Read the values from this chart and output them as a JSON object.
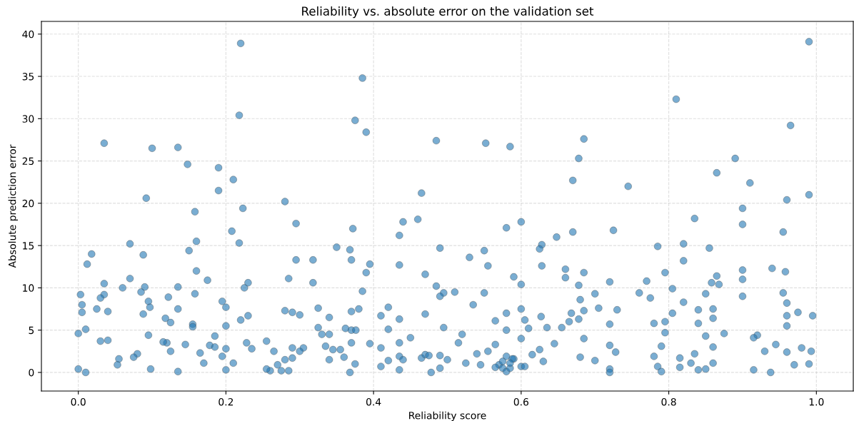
{
  "chart_data": {
    "type": "scatter",
    "title": "Reliability vs. absolute error on the validation set",
    "xlabel": "Reliability score",
    "ylabel": "Absolute prediction error",
    "xlim": [
      -0.05,
      1.05
    ],
    "ylim": [
      -2.2,
      41.5
    ],
    "xticks": [
      {
        "value": 0,
        "label": "0.0"
      },
      {
        "value": 0.2,
        "label": "0.2"
      },
      {
        "value": 0.4,
        "label": "0.4"
      },
      {
        "value": 0.6,
        "label": "0.6"
      },
      {
        "value": 0.8,
        "label": "0.8"
      },
      {
        "value": 1,
        "label": "1.0"
      }
    ],
    "yticks": [
      0,
      5,
      10,
      15,
      20,
      25,
      30,
      35,
      40
    ],
    "grid": true,
    "marker": "circle",
    "series": [
      {
        "color": "#1f77b4",
        "x": [
          0.22,
          0.99,
          0.385,
          0.81,
          0.218,
          0.375,
          0.39,
          0.965,
          0.035,
          0.135,
          0.1,
          0.485,
          0.552,
          0.585,
          0.685,
          0.678,
          0.89,
          0.148,
          0.19,
          0.865,
          0.21,
          0.67,
          0.91,
          0.745,
          0.19,
          0.465,
          0.99,
          0.092,
          0.96,
          0.28,
          0.9,
          0.223,
          0.158,
          0.835,
          0.46,
          0.44,
          0.6,
          0.295,
          0.9,
          0.58,
          0.372,
          0.725,
          0.208,
          0.955,
          0.67,
          0.435,
          0.648,
          0.16,
          0.218,
          0.82,
          0.07,
          0.628,
          0.785,
          0.35,
          0.49,
          0.855,
          0.625,
          0.368,
          0.55,
          0.15,
          0.018,
          0.088,
          0.53,
          0.295,
          0.318,
          0.37,
          0.82,
          0.012,
          0.395,
          0.435,
          0.555,
          0.628,
          0.94,
          0.66,
          0.9,
          0.16,
          0.958,
          0.39,
          0.795,
          0.685,
          0.47,
          0.865,
          0.59,
          0.66,
          0.07,
          0.285,
          0.9,
          0.175,
          0.77,
          0.23,
          0.72,
          0.318,
          0.035,
          0.858,
          0.6,
          0.868,
          0.678,
          0.485,
          0.135,
          0.09,
          0.06,
          0.225,
          0.805,
          0.495,
          0.55,
          0.85,
          0.76,
          0.955,
          0.158,
          0.7,
          0.035,
          0.003,
          0.51,
          0.385,
          0.085,
          0.49,
          0.9,
          0.122,
          0.03,
          0.775,
          0.68,
          0.195,
          0.095,
          0.96,
          0.82,
          0.005,
          0.535,
          0.2,
          0.097,
          0.42,
          0.6,
          0.135,
          0.025,
          0.705,
          0.84,
          0.86,
          0.325,
          0.38,
          0.28,
          0.73,
          0.805,
          0.685,
          0.975,
          0.005,
          0.04,
          0.37,
          0.29,
          0.668,
          0.088,
          0.47,
          0.58,
          0.3,
          0.23,
          0.41,
          0.995,
          0.96,
          0.627,
          0.118,
          0.34,
          0.435,
          0.678,
          0.86,
          0.22,
          0.605,
          0.665,
          0.565,
          0.795,
          0.125,
          0.84,
          0.78,
          0.155,
          0.155,
          0.72,
          0.2,
          0.325,
          0.362,
          0.37,
          0.376,
          0.42,
          0.495,
          0.58,
          0.61,
          0.635,
          0.655,
          0.96,
          0.01,
          0.795,
          0.0,
          0.095,
          0.185,
          0.33,
          0.34,
          0.45,
          0.52,
          0.875,
          0.92,
          0.685,
          0.6,
          0.85,
          0.915,
          0.04,
          0.03,
          0.12,
          0.255,
          0.228,
          0.37,
          0.395,
          0.435,
          0.515,
          0.565,
          0.645,
          0.72,
          0.79,
          0.145,
          0.178,
          0.185,
          0.2,
          0.235,
          0.29,
          0.305,
          0.335,
          0.345,
          0.355,
          0.41,
          0.54,
          0.555,
          0.625,
          0.86,
          0.93,
          0.945,
          0.96,
          0.98,
          0.993,
          0.728,
          0.835,
          0.165,
          0.125,
          0.08,
          0.075,
          0.055,
          0.195,
          0.3,
          0.465,
          0.49,
          0.47,
          0.435,
          0.475,
          0.58,
          0.615,
          0.68,
          0.78,
          0.815,
          0.265,
          0.28,
          0.29,
          0.5,
          0.34,
          0.36,
          0.42,
          0.375,
          0.41,
          0.44,
          0.525,
          0.545,
          0.57,
          0.59,
          0.63,
          0.7,
          0.86,
          0.97,
          0.053,
          0.115,
          0.17,
          0.21,
          0.26,
          0.275,
          0.27,
          0.285,
          0.2,
          0.135,
          0.098,
          0.01,
          0.0,
          0.255,
          0.368,
          0.435,
          0.478,
          0.49,
          0.565,
          0.575,
          0.58,
          0.585,
          0.6,
          0.605,
          0.72,
          0.72,
          0.785,
          0.79,
          0.815,
          0.84,
          0.85,
          0.915,
          0.938,
          0.99,
          0.83,
          0.588,
          0.575,
          0.585
        ],
        "values": [
          38.9,
          39.1,
          34.8,
          32.3,
          30.4,
          29.8,
          28.4,
          29.2,
          27.1,
          26.6,
          26.5,
          27.4,
          27.1,
          26.7,
          27.6,
          25.3,
          25.3,
          24.6,
          24.2,
          23.6,
          22.8,
          22.7,
          22.4,
          22.0,
          21.5,
          21.2,
          21.0,
          20.6,
          20.4,
          20.2,
          19.4,
          19.4,
          19.0,
          18.2,
          18.1,
          17.8,
          17.8,
          17.6,
          17.5,
          17.1,
          17.0,
          16.8,
          16.7,
          16.6,
          16.6,
          16.2,
          16.0,
          15.5,
          15.3,
          15.2,
          15.2,
          15.1,
          14.9,
          14.8,
          14.7,
          14.7,
          14.6,
          14.5,
          14.4,
          14.4,
          14.0,
          13.9,
          13.6,
          13.3,
          13.3,
          13.3,
          13.2,
          12.8,
          12.8,
          12.7,
          12.6,
          12.6,
          12.3,
          12.2,
          12.1,
          12.0,
          11.9,
          11.8,
          11.8,
          11.8,
          11.6,
          11.4,
          11.3,
          11.2,
          11.1,
          11.1,
          11.0,
          10.9,
          10.8,
          10.6,
          10.7,
          10.6,
          10.5,
          10.6,
          10.4,
          10.4,
          10.3,
          10.2,
          10.1,
          10.1,
          10.0,
          10.0,
          9.9,
          9.4,
          9.4,
          9.3,
          9.4,
          9.4,
          9.3,
          9.3,
          9.2,
          9.2,
          9.5,
          9.6,
          9.5,
          9.0,
          9.0,
          8.9,
          8.8,
          8.8,
          8.6,
          8.4,
          8.4,
          8.2,
          8.3,
          8.0,
          8.0,
          7.7,
          7.7,
          7.7,
          7.5,
          7.5,
          7.5,
          7.6,
          7.4,
          7.5,
          7.6,
          7.5,
          7.3,
          7.4,
          7.0,
          7.3,
          7.1,
          7.1,
          7.2,
          7.2,
          7.1,
          7.0,
          6.9,
          6.9,
          7.0,
          6.8,
          6.7,
          6.7,
          6.7,
          6.7,
          6.6,
          6.4,
          6.5,
          6.3,
          6.3,
          6.4,
          6.2,
          6.2,
          6.0,
          6.1,
          6.0,
          5.9,
          5.8,
          5.8,
          5.7,
          5.4,
          5.7,
          5.5,
          5.3,
          5.2,
          5.0,
          5.0,
          5.1,
          5.3,
          5.0,
          5.2,
          5.3,
          5.3,
          5.5,
          5.1,
          4.7,
          4.6,
          4.4,
          4.3,
          4.5,
          4.5,
          4.1,
          4.5,
          4.6,
          4.4,
          4.0,
          4.0,
          4.3,
          4.1,
          3.8,
          3.7,
          3.5,
          3.7,
          3.5,
          3.5,
          3.4,
          3.5,
          3.5,
          3.3,
          3.4,
          3.2,
          3.1,
          3.3,
          3.2,
          3.0,
          2.8,
          2.8,
          2.9,
          2.9,
          3.1,
          2.7,
          2.7,
          2.9,
          2.2,
          2.5,
          2.7,
          3.0,
          2.5,
          3.3,
          2.4,
          2.9,
          2.5,
          2.4,
          2.2,
          2.3,
          2.5,
          2.2,
          1.8,
          1.6,
          1.9,
          2.5,
          1.7,
          2.0,
          2.1,
          1.9,
          2.0,
          1.9,
          2.1,
          1.8,
          1.9,
          1.7,
          2.5,
          1.5,
          1.7,
          1.5,
          1.5,
          1.8,
          1.4,
          1.0,
          0.7,
          1.5,
          1.1,
          0.9,
          0.9,
          1.6,
          1.3,
          1.4,
          1.1,
          0.9,
          0.9,
          3.6,
          1.1,
          1.1,
          0.2,
          0.2,
          0.9,
          0.2,
          0.3,
          0.1,
          0.4,
          0.0,
          0.4,
          0.4,
          0.0,
          0.3,
          0.0,
          0.5,
          0.6,
          0.5,
          0.1,
          0.5,
          0.7,
          0.7,
          0.4,
          0.0,
          0.7,
          0.1,
          0.6,
          0.3,
          0.4,
          0.3,
          0.0,
          1.0,
          1.1,
          1.6,
          1.3,
          1.1
        ]
      }
    ]
  }
}
